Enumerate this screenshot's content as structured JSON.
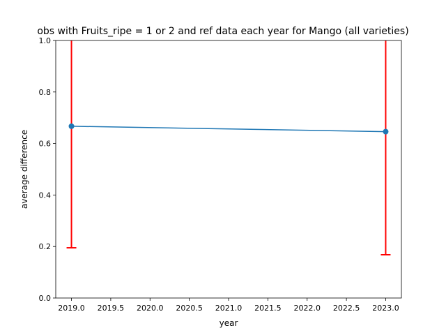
{
  "chart_data": {
    "type": "line",
    "title": "obs with Fruits_ripe = 1 or 2 and ref data each year for Mango (all varieties)",
    "xlabel": "year",
    "ylabel": "average difference",
    "xlim": [
      2018.8,
      2023.2
    ],
    "ylim": [
      0.0,
      1.0
    ],
    "xticks": [
      "2019.0",
      "2019.5",
      "2020.0",
      "2020.5",
      "2021.0",
      "2021.5",
      "2022.0",
      "2022.5",
      "2023.0"
    ],
    "yticks": [
      "0.0",
      "0.2",
      "0.4",
      "0.6",
      "0.8",
      "1.0"
    ],
    "grid": false,
    "legend": "none",
    "series": [
      {
        "x": [
          2019,
          2023
        ],
        "y": [
          0.667,
          0.646
        ],
        "error_lower": [
          0.195,
          0.168
        ],
        "error_upper": [
          1.15,
          1.15
        ],
        "color": "#1f77b4",
        "error_color": "#ff0000"
      }
    ]
  }
}
